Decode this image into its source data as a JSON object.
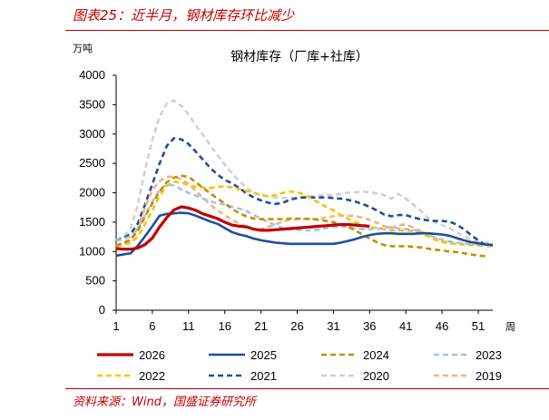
{
  "header": {
    "caption": "图表25：近半月，钢材库存环比减少"
  },
  "footer": {
    "source": "资料来源：Wind，国盛证券研究所"
  },
  "chart_data": {
    "type": "line",
    "title": "钢材库存（厂库+社库）",
    "ylabel": "万吨",
    "xlabel": "周",
    "xlim": [
      1,
      53
    ],
    "ylim": [
      0,
      4000
    ],
    "x_ticks": [
      1,
      6,
      11,
      16,
      21,
      26,
      31,
      36,
      41,
      46,
      51
    ],
    "y_ticks": [
      0,
      500,
      1000,
      1500,
      2000,
      2500,
      3000,
      3500,
      4000
    ],
    "legend_position": "bottom",
    "series": [
      {
        "name": "2026",
        "color": "#c00000",
        "dash": "solid",
        "width": 3.2,
        "x": [
          1,
          2,
          3,
          4,
          5,
          6,
          7,
          8,
          9,
          10,
          11,
          12,
          13,
          14,
          15,
          16,
          17,
          18,
          19,
          20,
          21,
          22,
          23,
          24,
          25,
          26,
          27,
          28,
          29,
          30,
          31,
          32,
          33,
          34,
          35,
          36
        ],
        "values": [
          1050,
          1040,
          1040,
          1060,
          1120,
          1230,
          1420,
          1580,
          1710,
          1760,
          1740,
          1700,
          1640,
          1600,
          1560,
          1500,
          1450,
          1430,
          1420,
          1380,
          1360,
          1360,
          1370,
          1380,
          1390,
          1400,
          1410,
          1420,
          1430,
          1440,
          1450,
          1460,
          1460,
          1450,
          1440,
          1430
        ]
      },
      {
        "name": "2025",
        "color": "#1f4e9a",
        "dash": "solid",
        "width": 2.6,
        "x": [
          1,
          2,
          3,
          4,
          5,
          6,
          7,
          8,
          9,
          10,
          11,
          12,
          13,
          14,
          15,
          16,
          17,
          18,
          19,
          20,
          21,
          22,
          23,
          24,
          25,
          26,
          27,
          28,
          29,
          30,
          31,
          32,
          33,
          34,
          35,
          36,
          37,
          38,
          39,
          40,
          41,
          42,
          43,
          44,
          45,
          46,
          47,
          48,
          49,
          50,
          51,
          52,
          53
        ],
        "values": [
          930,
          950,
          970,
          1100,
          1260,
          1430,
          1610,
          1640,
          1650,
          1660,
          1650,
          1610,
          1560,
          1510,
          1470,
          1400,
          1330,
          1290,
          1260,
          1220,
          1190,
          1170,
          1150,
          1140,
          1130,
          1130,
          1130,
          1130,
          1130,
          1130,
          1130,
          1150,
          1180,
          1210,
          1250,
          1280,
          1300,
          1310,
          1310,
          1300,
          1300,
          1300,
          1310,
          1310,
          1300,
          1290,
          1270,
          1230,
          1190,
          1160,
          1140,
          1120,
          1110
        ]
      },
      {
        "name": "2024",
        "color": "#c09000",
        "dash": "dash",
        "width": 2.6,
        "x": [
          1,
          2,
          3,
          4,
          5,
          6,
          7,
          8,
          9,
          10,
          11,
          12,
          13,
          14,
          15,
          16,
          17,
          18,
          19,
          20,
          21,
          22,
          23,
          24,
          25,
          26,
          27,
          28,
          29,
          30,
          31,
          32,
          33,
          34,
          35,
          36,
          37,
          38,
          39,
          40,
          41,
          42,
          43,
          44,
          45,
          46,
          47,
          48,
          49,
          50,
          51,
          52
        ],
        "values": [
          1100,
          1150,
          1200,
          1350,
          1600,
          1820,
          2020,
          2180,
          2260,
          2290,
          2270,
          2180,
          2080,
          1990,
          1900,
          1820,
          1730,
          1650,
          1600,
          1560,
          1550,
          1550,
          1550,
          1550,
          1560,
          1560,
          1560,
          1550,
          1540,
          1520,
          1500,
          1460,
          1420,
          1360,
          1290,
          1220,
          1160,
          1110,
          1090,
          1090,
          1090,
          1080,
          1070,
          1050,
          1030,
          1020,
          1000,
          990,
          970,
          950,
          930,
          920
        ]
      },
      {
        "name": "2023",
        "color": "#9ec5e6",
        "dash": "dash",
        "width": 2.6,
        "x": [
          1,
          2,
          3,
          4,
          5,
          6,
          7,
          8,
          9,
          10,
          11,
          12,
          13,
          14,
          15,
          16,
          17,
          18,
          19,
          20,
          21,
          22,
          23,
          24,
          25,
          26,
          27,
          28,
          29,
          30,
          31,
          32,
          33,
          34,
          35,
          36,
          37,
          38,
          39,
          40,
          41,
          42,
          43,
          44,
          45,
          46,
          47,
          48,
          49,
          50,
          51,
          52,
          53
        ],
        "values": [
          1180,
          1210,
          1260,
          1380,
          1620,
          1850,
          2050,
          2150,
          2120,
          2060,
          2000,
          1950,
          1900,
          1850,
          1820,
          1800,
          1760,
          1730,
          1690,
          1620,
          1560,
          1500,
          1450,
          1400,
          1380,
          1370,
          1360,
          1360,
          1370,
          1400,
          1420,
          1430,
          1420,
          1390,
          1380,
          1380,
          1380,
          1400,
          1420,
          1390,
          1380,
          1370,
          1340,
          1290,
          1240,
          1200,
          1170,
          1150,
          1140,
          1130,
          1120,
          1140,
          1160
        ]
      },
      {
        "name": "2022",
        "color": "#ffc000",
        "dash": "dash",
        "width": 2.6,
        "x": [
          1,
          2,
          3,
          4,
          5,
          6,
          7,
          8,
          9,
          10,
          11,
          12,
          13,
          14,
          15,
          16,
          17,
          18,
          19,
          20,
          21,
          22,
          23,
          24,
          25,
          26,
          27,
          28,
          29,
          30,
          31,
          32,
          33,
          34,
          35,
          36,
          37,
          38,
          39,
          40,
          41,
          42,
          43,
          44,
          45,
          46,
          47,
          48,
          49,
          50,
          51,
          52,
          53
        ],
        "values": [
          1100,
          1120,
          1150,
          1250,
          1470,
          1700,
          1950,
          2120,
          2190,
          2170,
          2130,
          2100,
          2090,
          2080,
          2100,
          2110,
          2090,
          2060,
          2030,
          2000,
          1960,
          1940,
          1960,
          2000,
          2020,
          2010,
          1970,
          1900,
          1830,
          1760,
          1700,
          1620,
          1560,
          1500,
          1460,
          1420,
          1400,
          1380,
          1360,
          1360,
          1360,
          1350,
          1320,
          1260,
          1200,
          1160,
          1140,
          1130,
          1120,
          1110,
          1100,
          1100,
          1100
        ]
      },
      {
        "name": "2021",
        "color": "#1f4e9a",
        "dash": "dash",
        "width": 2.6,
        "x": [
          1,
          2,
          3,
          4,
          5,
          6,
          7,
          8,
          9,
          10,
          11,
          12,
          13,
          14,
          15,
          16,
          17,
          18,
          19,
          20,
          21,
          22,
          23,
          24,
          25,
          26,
          27,
          28,
          29,
          30,
          31,
          32,
          33,
          34,
          35,
          36,
          37,
          38,
          39,
          40,
          41,
          42,
          43,
          44,
          45,
          46,
          47,
          48,
          49,
          50,
          51,
          52,
          53
        ],
        "values": [
          1180,
          1230,
          1300,
          1480,
          1800,
          2150,
          2500,
          2800,
          2930,
          2910,
          2830,
          2700,
          2560,
          2420,
          2310,
          2220,
          2160,
          2080,
          1990,
          1920,
          1870,
          1830,
          1810,
          1830,
          1880,
          1910,
          1920,
          1920,
          1920,
          1920,
          1910,
          1900,
          1880,
          1850,
          1810,
          1760,
          1700,
          1630,
          1600,
          1620,
          1620,
          1580,
          1550,
          1530,
          1520,
          1520,
          1510,
          1460,
          1380,
          1280,
          1190,
          1110,
          1100
        ]
      },
      {
        "name": "2020",
        "color": "#d0d0d0",
        "dash": "dash",
        "width": 2.6,
        "x": [
          1,
          2,
          3,
          4,
          5,
          6,
          7,
          8,
          9,
          10,
          11,
          12,
          13,
          14,
          15,
          16,
          17,
          18,
          19,
          20,
          21,
          22,
          23,
          24,
          25,
          26,
          27,
          28,
          29,
          30,
          31,
          32,
          33,
          34,
          35,
          36,
          37,
          38,
          39,
          40,
          41,
          42,
          43,
          44,
          45,
          46,
          47,
          48,
          49,
          50,
          51,
          52,
          53
        ],
        "values": [
          1200,
          1250,
          1400,
          1800,
          2400,
          2900,
          3300,
          3520,
          3570,
          3480,
          3330,
          3150,
          2980,
          2810,
          2640,
          2480,
          2330,
          2200,
          2080,
          2000,
          1960,
          1940,
          1920,
          1910,
          1910,
          1920,
          1930,
          1940,
          1950,
          1960,
          1960,
          1980,
          2000,
          2010,
          2020,
          2010,
          1990,
          1960,
          1900,
          1980,
          1900,
          1800,
          1700,
          1580,
          1500,
          1450,
          1400,
          1330,
          1260,
          1200,
          1160,
          1130,
          1120
        ]
      },
      {
        "name": "2019",
        "color": "#f4b183",
        "dash": "dash",
        "width": 2.6,
        "x": [
          1,
          2,
          3,
          4,
          5,
          6,
          7,
          8,
          9,
          10,
          11,
          12,
          13,
          14,
          15,
          16,
          17,
          18,
          19,
          20,
          21,
          22,
          23,
          24,
          25,
          26,
          27,
          28,
          29,
          30,
          31,
          32,
          33,
          34,
          35,
          36,
          37,
          38,
          39,
          40,
          41,
          42,
          43,
          44,
          45,
          46,
          47,
          48,
          49,
          50,
          51,
          52,
          53
        ],
        "values": [
          1080,
          1120,
          1200,
          1400,
          1760,
          2050,
          2200,
          2270,
          2280,
          2230,
          2150,
          2030,
          1910,
          1800,
          1700,
          1620,
          1540,
          1470,
          1420,
          1380,
          1380,
          1420,
          1460,
          1510,
          1540,
          1550,
          1550,
          1550,
          1560,
          1580,
          1600,
          1610,
          1610,
          1600,
          1580,
          1540,
          1490,
          1430,
          1400,
          1450,
          1460,
          1410,
          1350,
          1290,
          1230,
          1180,
          1150,
          1130,
          1120,
          1110,
          1100,
          1100,
          1080
        ]
      }
    ]
  }
}
